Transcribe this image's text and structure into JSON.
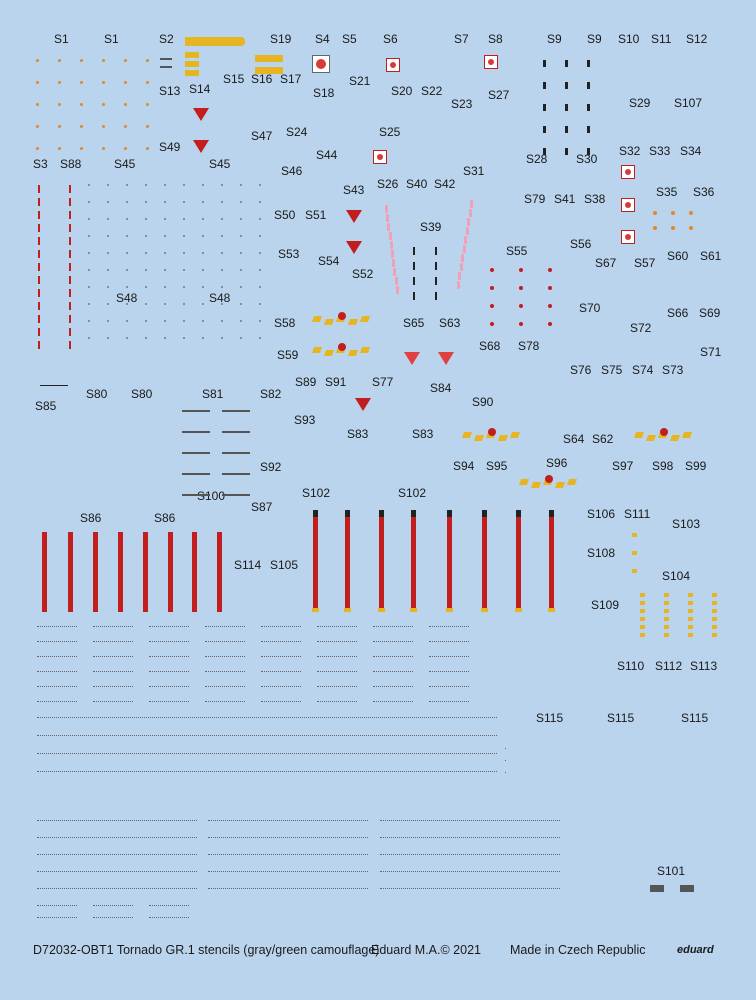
{
  "sheet": {
    "background_color": "#b9d4ec",
    "accent_red": "#c21e1e",
    "accent_yellow": "#e8b522",
    "labels": [
      "S1",
      "S1",
      "S2",
      "S19",
      "S4",
      "S5",
      "S6",
      "S7",
      "S8",
      "S9",
      "S9",
      "S10",
      "S11",
      "S12",
      "S14",
      "S15",
      "S16",
      "S17",
      "S13",
      "S18",
      "S21",
      "S20",
      "S22",
      "S23",
      "S27",
      "S29",
      "S107",
      "S49",
      "S47",
      "S24",
      "S25",
      "S44",
      "S32",
      "S33",
      "S34",
      "S3",
      "S88",
      "S45",
      "S45",
      "S46",
      "S26",
      "S40",
      "S42",
      "S31",
      "S28",
      "S30",
      "S43",
      "S35",
      "S36",
      "S79",
      "S41",
      "S38",
      "S50",
      "S51",
      "S39",
      "S53",
      "S54",
      "S55",
      "S56",
      "S67",
      "S57",
      "S60",
      "S61",
      "S52",
      "S48",
      "S48",
      "S70",
      "S66",
      "S69",
      "S58",
      "S65",
      "S63",
      "S72",
      "S68",
      "S78",
      "S71",
      "S59",
      "S76",
      "S75",
      "S74",
      "S73",
      "S89",
      "S91",
      "S77",
      "S84",
      "S80",
      "S80",
      "S81",
      "S82",
      "S90",
      "S85",
      "S93",
      "S83",
      "S83",
      "S64",
      "S62",
      "S92",
      "S94",
      "S95",
      "S96",
      "S97",
      "S98",
      "S99",
      "S100",
      "S102",
      "S102",
      "S87",
      "S106",
      "S111",
      "S103",
      "S86",
      "S86",
      "S108",
      "S114",
      "S105",
      "S104",
      "S109",
      "S110",
      "S112",
      "S113",
      "S115",
      "S115",
      "S115",
      "S101"
    ],
    "rescue_text": "RESCUE",
    "fwd_text": "FWD",
    "no_step_text": "NO STEP",
    "danger_text": "DANGER KEEP CLEAR",
    "fragile_text": "FRAGILE",
    "keep_off_text": "KEEP OFF"
  },
  "footer": {
    "product": "D72032-OBT1 Tornado GR.1 stencils (gray/green camouflage)",
    "copyright": "Eduard M.A.© 2021",
    "origin": "Made in Czech Republic",
    "brand": "eduard"
  }
}
